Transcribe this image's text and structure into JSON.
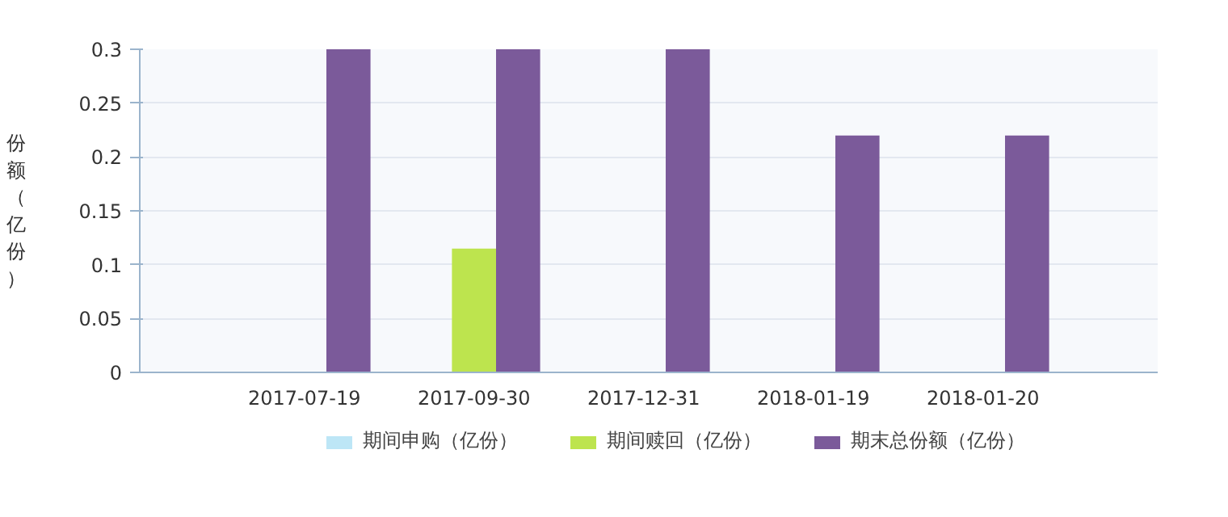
{
  "chart_data": {
    "type": "bar",
    "ylabel": "份额（亿份）",
    "categories": [
      "2017-07-19",
      "2017-09-30",
      "2017-12-31",
      "2018-01-19",
      "2018-01-20"
    ],
    "series": [
      {
        "name": "期间申购（亿份）",
        "color": "#bde6f6",
        "values": [
          0,
          0,
          0,
          0,
          0
        ]
      },
      {
        "name": "期间赎回（亿份）",
        "color": "#bde44e",
        "values": [
          0,
          0.115,
          0,
          0,
          0
        ]
      },
      {
        "name": "期末总份额（亿份）",
        "color": "#7b5a9a",
        "values": [
          0.3,
          0.3,
          0.3,
          0.22,
          0.22
        ]
      }
    ],
    "ylim": [
      0,
      0.3
    ],
    "yticks": [
      0,
      0.05,
      0.1,
      0.15,
      0.2,
      0.25,
      0.3
    ],
    "grid": "y",
    "legend": "bottom"
  }
}
